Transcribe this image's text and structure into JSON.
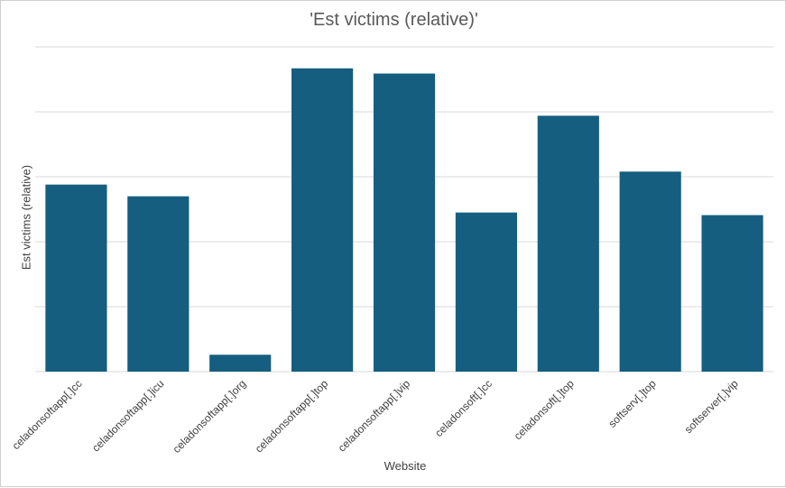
{
  "chart_data": {
    "type": "bar",
    "title": "'Est victims (relative)'",
    "xlabel": "Website",
    "ylabel": "Est victims (relative)",
    "categories": [
      "celadonsoftapp[.]cc",
      "celadonsoftapp[.]icu",
      "celadonsoftapp[.]org",
      "celadonsoftapp[.]top",
      "celadonsoftapp[.]vip",
      "celadonsoft[.]cc",
      "celadonsoft[.]top",
      "softserv[.]top",
      "softserver[.]vip"
    ],
    "values": [
      2.88,
      2.7,
      0.26,
      4.67,
      4.59,
      2.45,
      3.94,
      3.08,
      2.41
    ],
    "ylim": [
      0,
      5
    ],
    "grid": true,
    "bar_color": "#155e80",
    "grid_color": "#d9d9d9"
  }
}
